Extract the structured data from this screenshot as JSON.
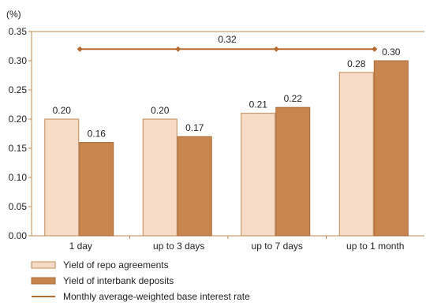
{
  "chart_data": {
    "type": "bar",
    "ylabel": "(%)",
    "ylim": [
      0,
      0.35
    ],
    "yticks": [
      "0.00",
      "0.05",
      "0.10",
      "0.15",
      "0.20",
      "0.25",
      "0.30",
      "0.35"
    ],
    "grid": false,
    "legend_position": "bottom-left",
    "categories": [
      "1 day",
      "up to 3 days",
      "up to 7 days",
      "up to 1 month"
    ],
    "series": [
      {
        "name": "Yield of repo agreements",
        "values": [
          0.2,
          0.2,
          0.21,
          0.28
        ],
        "labels": [
          "0.20",
          "0.20",
          "0.21",
          "0.28"
        ],
        "fill": "#f6dcc6",
        "stroke": "#c08a56"
      },
      {
        "name": "Yield of interbank deposits",
        "values": [
          0.16,
          0.17,
          0.22,
          0.3
        ],
        "labels": [
          "0.16",
          "0.17",
          "0.22",
          "0.30"
        ],
        "fill": "#c8864e",
        "stroke": "#a86a38"
      }
    ],
    "line": {
      "name": "Monthly average-weighted base interest rate",
      "value": 0.32,
      "label": "0.32",
      "color": "#b86a2e"
    },
    "axis_color": "#c08a56"
  }
}
